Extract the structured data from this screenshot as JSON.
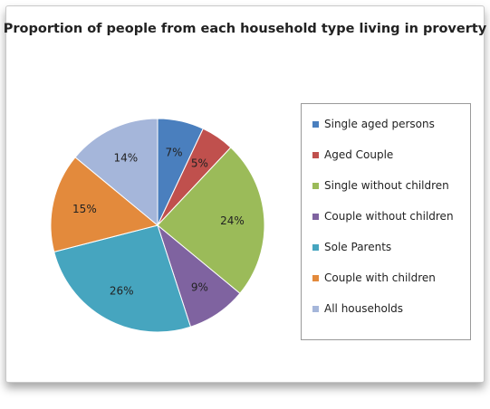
{
  "chart_data": {
    "type": "pie",
    "title": "Proportion of people from each household type living in proverty",
    "legend_position": "right",
    "slices": [
      {
        "name": "Single aged persons",
        "value": 7,
        "label": "7%",
        "color": "#4a7fbe"
      },
      {
        "name": "Aged Couple",
        "value": 5,
        "label": "5%",
        "color": "#c0504d"
      },
      {
        "name": "Single without children",
        "value": 24,
        "label": "24%",
        "color": "#9bbb59"
      },
      {
        "name": "Couple without children",
        "value": 9,
        "label": "9%",
        "color": "#7f63a0"
      },
      {
        "name": "Sole Parents",
        "value": 26,
        "label": "26%",
        "color": "#46a5bf"
      },
      {
        "name": "Couple with children",
        "value": 15,
        "label": "15%",
        "color": "#e38a3c"
      },
      {
        "name": "All households",
        "value": 14,
        "label": "14%",
        "color": "#a5b6da"
      }
    ]
  }
}
